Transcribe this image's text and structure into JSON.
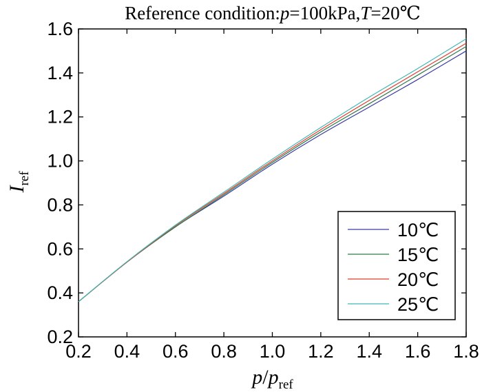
{
  "chart_data": {
    "type": "line",
    "title": {
      "prefix": "Reference condition:",
      "p_symbol": "p",
      "p_value": "=100kPa,",
      "t_symbol": "T",
      "t_value": "=20℃"
    },
    "xlabel": {
      "main": "p",
      "slash": "/",
      "main2": "p",
      "sub": "ref"
    },
    "ylabel": {
      "main": "I",
      "sub": "ref"
    },
    "xlim": [
      0.2,
      1.8
    ],
    "ylim": [
      0.2,
      1.6
    ],
    "x_ticks": [
      "0.2",
      "0.4",
      "0.6",
      "0.8",
      "1.0",
      "1.2",
      "1.4",
      "1.6",
      "1.8"
    ],
    "y_ticks": [
      "0.2",
      "0.4",
      "0.6",
      "0.8",
      "1.0",
      "1.2",
      "1.4",
      "1.6"
    ],
    "legend_position": "bottom-right",
    "series": [
      {
        "name": "10℃",
        "color": "#3a3aa6",
        "x": [
          0.2,
          0.4,
          0.6,
          0.8,
          1.0,
          1.2,
          1.4,
          1.6,
          1.8
        ],
        "y": [
          0.36,
          0.54,
          0.7,
          0.84,
          0.985,
          1.12,
          1.245,
          1.37,
          1.5
        ]
      },
      {
        "name": "15℃",
        "color": "#2e7a4a",
        "x": [
          0.2,
          0.4,
          0.6,
          0.8,
          1.0,
          1.2,
          1.4,
          1.6,
          1.8
        ],
        "y": [
          0.36,
          0.54,
          0.7,
          0.846,
          0.993,
          1.132,
          1.26,
          1.39,
          1.52
        ]
      },
      {
        "name": "20℃",
        "color": "#e03a2a",
        "x": [
          0.2,
          0.4,
          0.6,
          0.8,
          1.0,
          1.2,
          1.4,
          1.6,
          1.8
        ],
        "y": [
          0.36,
          0.54,
          0.705,
          0.852,
          1.0,
          1.142,
          1.275,
          1.405,
          1.535
        ]
      },
      {
        "name": "25℃",
        "color": "#3fb8b4",
        "x": [
          0.2,
          0.4,
          0.6,
          0.8,
          1.0,
          1.2,
          1.4,
          1.6,
          1.8
        ],
        "y": [
          0.36,
          0.542,
          0.708,
          0.858,
          1.008,
          1.152,
          1.29,
          1.42,
          1.555
        ]
      }
    ]
  }
}
